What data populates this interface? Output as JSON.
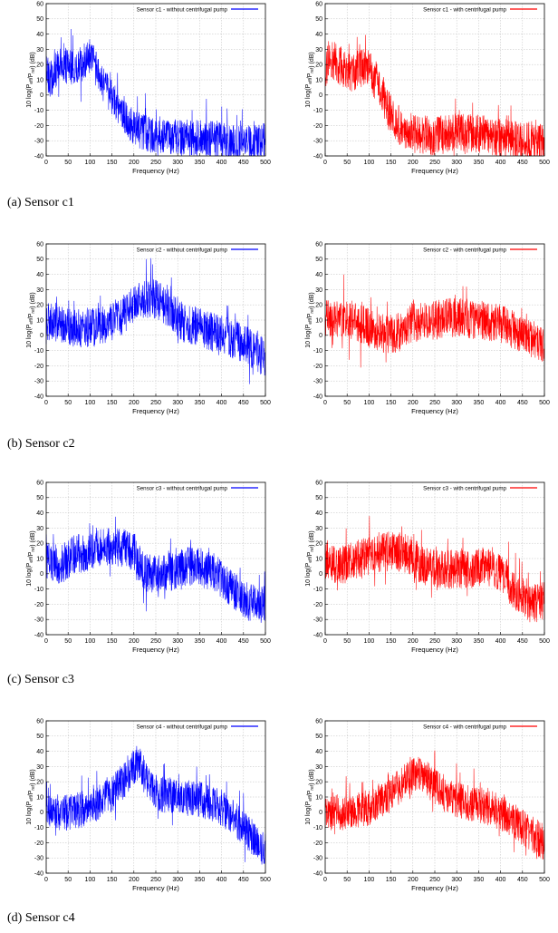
{
  "figure": {
    "captions": [
      "(a)  Sensor c1",
      "(b)  Sensor c2",
      "(c)  Sensor c3",
      "(d)  Sensor c4"
    ]
  },
  "colors": {
    "without": "#0000ff",
    "with": "#ff0000",
    "grid": "#bdbdbd",
    "frame": "#000000"
  },
  "chart_data": [
    {
      "type": "line",
      "sensor": "c1",
      "legend": "Sensor c1 - without centrifugal pump",
      "color": "#0000ff",
      "xlabel": "Frequency (Hz)",
      "ylabel": "10 log(P_eff/P_ref) (dB)",
      "xlim": [
        0,
        500
      ],
      "ylim": [
        -40,
        60
      ],
      "xticks": [
        0,
        50,
        100,
        150,
        200,
        250,
        300,
        350,
        400,
        450,
        500
      ],
      "yticks": [
        -40,
        -30,
        -20,
        -10,
        0,
        10,
        20,
        30,
        40,
        50,
        60
      ],
      "grid": true,
      "legend_position": "top-right",
      "envelope": {
        "x": [
          0,
          10,
          30,
          60,
          90,
          100,
          110,
          125,
          145,
          170,
          200,
          250,
          300,
          350,
          400,
          450,
          500
        ],
        "y": [
          15,
          10,
          20,
          18,
          22,
          25,
          20,
          10,
          0,
          -10,
          -22,
          -27,
          -28,
          -28,
          -30,
          -32,
          -30
        ]
      },
      "spread": 12
    },
    {
      "type": "line",
      "sensor": "c1",
      "legend": "Sensor c1 - with centrifugal pump",
      "color": "#ff0000",
      "xlabel": "Frequency (Hz)",
      "ylabel": "10 log(P_eff/P_ref) (dB)",
      "xlim": [
        0,
        500
      ],
      "ylim": [
        -40,
        60
      ],
      "xticks": [
        0,
        50,
        100,
        150,
        200,
        250,
        300,
        350,
        400,
        450,
        500
      ],
      "yticks": [
        -40,
        -30,
        -20,
        -10,
        0,
        10,
        20,
        30,
        40,
        50,
        60
      ],
      "grid": true,
      "legend_position": "top-right",
      "envelope": {
        "x": [
          0,
          10,
          30,
          60,
          90,
          100,
          110,
          125,
          145,
          170,
          200,
          250,
          300,
          350,
          400,
          450,
          500
        ],
        "y": [
          15,
          25,
          20,
          15,
          18,
          18,
          12,
          5,
          -10,
          -20,
          -25,
          -27,
          -25,
          -25,
          -28,
          -30,
          -32
        ]
      },
      "spread": 13
    },
    {
      "type": "line",
      "sensor": "c2",
      "legend": "Sensor c2 - without centrifugal pump",
      "color": "#0000ff",
      "xlabel": "Frequency (Hz)",
      "ylabel": "10 log(P_eff/P_ref) (dB)",
      "xlim": [
        0,
        500
      ],
      "ylim": [
        -40,
        60
      ],
      "xticks": [
        0,
        50,
        100,
        150,
        200,
        250,
        300,
        350,
        400,
        450,
        500
      ],
      "yticks": [
        -40,
        -30,
        -20,
        -10,
        0,
        10,
        20,
        30,
        40,
        50,
        60
      ],
      "grid": true,
      "legend_position": "top-right",
      "envelope": {
        "x": [
          0,
          30,
          60,
          100,
          150,
          180,
          210,
          240,
          270,
          300,
          350,
          400,
          450,
          500
        ],
        "y": [
          10,
          8,
          5,
          5,
          8,
          15,
          22,
          25,
          20,
          10,
          5,
          0,
          -5,
          -15
        ]
      },
      "spread": 13
    },
    {
      "type": "line",
      "sensor": "c2",
      "legend": "Sensor c2 - with centrifugal pump",
      "color": "#ff0000",
      "xlabel": "Frequency (Hz)",
      "ylabel": "10 log(P_eff/P_ref) (dB)",
      "xlim": [
        0,
        500
      ],
      "ylim": [
        -40,
        60
      ],
      "xticks": [
        0,
        50,
        100,
        150,
        200,
        250,
        300,
        350,
        400,
        450,
        500
      ],
      "yticks": [
        -40,
        -30,
        -20,
        -10,
        0,
        10,
        20,
        30,
        40,
        50,
        60
      ],
      "grid": true,
      "legend_position": "top-right",
      "envelope": {
        "x": [
          0,
          30,
          60,
          100,
          140,
          170,
          200,
          250,
          300,
          350,
          400,
          450,
          500
        ],
        "y": [
          10,
          12,
          10,
          5,
          0,
          2,
          8,
          10,
          12,
          10,
          8,
          0,
          -5
        ]
      },
      "spread": 13
    },
    {
      "type": "line",
      "sensor": "c3",
      "legend": "Sensor c3 - without centrifugal pump",
      "color": "#0000ff",
      "xlabel": "Frequency (Hz)",
      "ylabel": "10 log(P_eff/P_ref) (dB)",
      "xlim": [
        0,
        500
      ],
      "ylim": [
        -40,
        60
      ],
      "xticks": [
        0,
        50,
        100,
        150,
        200,
        250,
        300,
        350,
        400,
        450,
        500
      ],
      "yticks": [
        -40,
        -30,
        -20,
        -10,
        0,
        10,
        20,
        30,
        40,
        50,
        60
      ],
      "grid": true,
      "legend_position": "top-right",
      "envelope": {
        "x": [
          0,
          30,
          60,
          100,
          150,
          200,
          215,
          230,
          270,
          320,
          360,
          390,
          420,
          460,
          500
        ],
        "y": [
          10,
          5,
          12,
          15,
          18,
          15,
          5,
          0,
          0,
          5,
          5,
          0,
          -10,
          -18,
          -20
        ]
      },
      "spread": 13
    },
    {
      "type": "line",
      "sensor": "c3",
      "legend": "Sensor c3 - with centrifugal pump",
      "color": "#ff0000",
      "xlabel": "Frequency (Hz)",
      "ylabel": "10 log(P_eff/P_ref) (dB)",
      "xlim": [
        0,
        500
      ],
      "ylim": [
        -40,
        60
      ],
      "xticks": [
        0,
        50,
        100,
        150,
        200,
        250,
        300,
        350,
        400,
        450,
        500
      ],
      "yticks": [
        -40,
        -30,
        -20,
        -10,
        0,
        10,
        20,
        30,
        40,
        50,
        60
      ],
      "grid": true,
      "legend_position": "top-right",
      "envelope": {
        "x": [
          0,
          30,
          60,
          100,
          150,
          200,
          220,
          260,
          320,
          370,
          400,
          430,
          470,
          500
        ],
        "y": [
          10,
          5,
          8,
          12,
          15,
          12,
          5,
          3,
          3,
          5,
          0,
          -10,
          -20,
          -18
        ]
      },
      "spread": 13
    },
    {
      "type": "line",
      "sensor": "c4",
      "legend": "Sensor c4 - without centrifugal pump",
      "color": "#0000ff",
      "xlabel": "Frequency (Hz)",
      "ylabel": "10 log(P_eff/P_ref) (dB)",
      "xlim": [
        0,
        500
      ],
      "ylim": [
        -40,
        60
      ],
      "xticks": [
        0,
        50,
        100,
        150,
        200,
        250,
        300,
        350,
        400,
        450,
        500
      ],
      "yticks": [
        -40,
        -30,
        -20,
        -10,
        0,
        10,
        20,
        30,
        40,
        50,
        60
      ],
      "grid": true,
      "legend_position": "top-right",
      "envelope": {
        "x": [
          0,
          50,
          100,
          150,
          180,
          200,
          210,
          230,
          260,
          300,
          350,
          400,
          450,
          500
        ],
        "y": [
          0,
          0,
          3,
          12,
          22,
          30,
          33,
          20,
          12,
          10,
          8,
          3,
          -10,
          -25
        ]
      },
      "spread": 12
    },
    {
      "type": "line",
      "sensor": "c4",
      "legend": "Sensor c4 - with centrifugal pump",
      "color": "#ff0000",
      "xlabel": "Frequency (Hz)",
      "ylabel": "10 log(P_eff/P_ref) (dB)",
      "xlim": [
        0,
        500
      ],
      "ylim": [
        -40,
        60
      ],
      "xticks": [
        0,
        50,
        100,
        150,
        200,
        250,
        300,
        350,
        400,
        450,
        500
      ],
      "yticks": [
        -40,
        -30,
        -20,
        -10,
        0,
        10,
        20,
        30,
        40,
        50,
        60
      ],
      "grid": true,
      "legend_position": "top-right",
      "envelope": {
        "x": [
          0,
          50,
          100,
          150,
          180,
          210,
          230,
          270,
          300,
          350,
          400,
          450,
          500
        ],
        "y": [
          0,
          0,
          3,
          12,
          20,
          25,
          22,
          12,
          8,
          5,
          0,
          -10,
          -20
        ]
      },
      "spread": 12
    }
  ]
}
